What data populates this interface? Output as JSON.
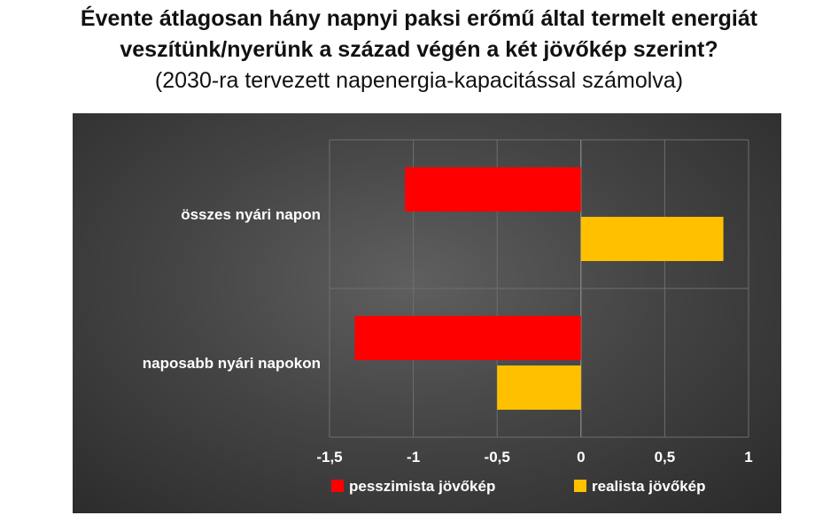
{
  "title": {
    "line1": "Évente átlagosan hány napnyi paksi erőmű által termelt energiát",
    "line2": "veszítünk/nyerünk a század végén a két jövőkép szerint?",
    "subtitle": "(2030-ra tervezett napenergia-kapacitással számolva)"
  },
  "colors": {
    "pessimistic": "#ff0000",
    "realistic": "#ffc000",
    "background": "#3f3f3f",
    "gridline": "#6e6e6e"
  },
  "chart_data": {
    "type": "bar",
    "orientation": "horizontal",
    "categories": [
      "összes nyári napon",
      "naposabb nyári napokon"
    ],
    "series": [
      {
        "name": "pesszimista jövőkép",
        "values": [
          -1.05,
          -1.35
        ]
      },
      {
        "name": "realista jövőkép",
        "values": [
          0.85,
          -0.5
        ]
      }
    ],
    "xlim": [
      -1.5,
      1
    ],
    "xticks": [
      "-1,5",
      "-1",
      "-0,5",
      "0",
      "0,5",
      "1"
    ],
    "xtick_values": [
      -1.5,
      -1,
      -0.5,
      0,
      0.5,
      1
    ],
    "grid": true,
    "legend": "bottom"
  }
}
